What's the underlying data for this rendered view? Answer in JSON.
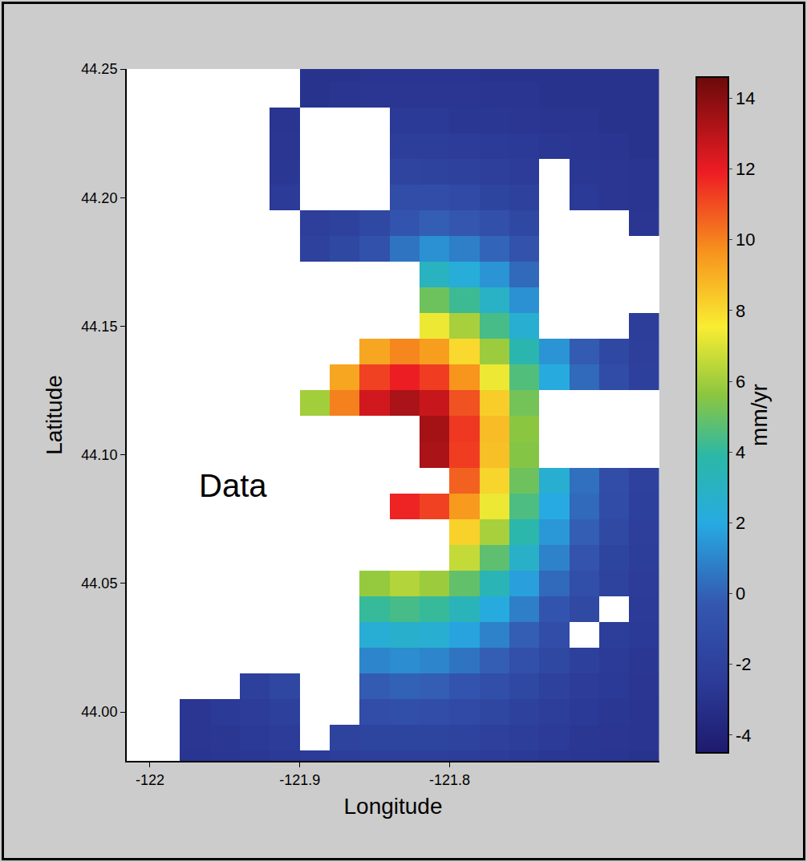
{
  "chart_data": {
    "type": "heatmap",
    "annotation": "Data",
    "x_label": "Longitude",
    "y_label": "Latitude",
    "colorbar_title": "mm/yr",
    "grid": false,
    "xlim": [
      -122.0155,
      -121.66
    ],
    "ylim": [
      43.981,
      44.25
    ],
    "xticks": [
      -122,
      -121.9,
      -121.8
    ],
    "yticks": [
      {
        "value": 44,
        "label": "44.00"
      },
      44.05,
      {
        "value": 44.1,
        "label": "44.10"
      },
      44.15,
      {
        "value": 44.2,
        "label": "44.20"
      },
      44.25
    ],
    "zlim": [
      -4.5,
      14.6
    ],
    "zticks": [
      -4,
      -2,
      0,
      2,
      4,
      6,
      8,
      10,
      12,
      14
    ],
    "x": [
      -122.01,
      -121.99,
      -121.97,
      -121.95,
      -121.93,
      -121.91,
      -121.89,
      -121.87,
      -121.85,
      -121.83,
      -121.81,
      -121.79,
      -121.77,
      -121.75,
      -121.73,
      -121.71,
      -121.69,
      -121.67
    ],
    "y": [
      43.98,
      43.99,
      44.0,
      44.01,
      44.02,
      44.03,
      44.04,
      44.05,
      44.06,
      44.07,
      44.08,
      44.09,
      44.1,
      44.11,
      44.12,
      44.13,
      44.14,
      44.15,
      44.16,
      44.17,
      44.18,
      44.19,
      44.2,
      44.21,
      44.22,
      44.23,
      44.24,
      44.25
    ],
    "z": [
      [
        null,
        null,
        -2.9,
        -2.8,
        -2.7,
        -2.6,
        -2.5,
        -2.3,
        -2.2,
        -2.2,
        -2.2,
        -2.3,
        -2.4,
        -2.6,
        -2.7,
        -2.8,
        -2.9,
        -3.0
      ],
      [
        null,
        null,
        -2.8,
        -2.7,
        -2.6,
        -2.4,
        null,
        -1.9,
        -1.7,
        -1.7,
        -1.7,
        -1.9,
        -2.1,
        -2.3,
        -2.5,
        -2.7,
        -2.8,
        -2.9
      ],
      [
        null,
        null,
        -2.8,
        -2.6,
        -2.4,
        -2.1,
        null,
        null,
        -1.1,
        -1.0,
        -1.1,
        -1.3,
        -1.6,
        -2.0,
        -2.3,
        -2.6,
        -2.7,
        -2.9
      ],
      [
        null,
        null,
        null,
        null,
        -2.1,
        -1.6,
        null,
        null,
        -0.2,
        0.0,
        -0.1,
        -0.5,
        -1.0,
        -1.5,
        -2.0,
        -2.4,
        -2.6,
        -2.8
      ],
      [
        null,
        null,
        null,
        null,
        null,
        null,
        null,
        null,
        1.0,
        1.2,
        1.0,
        0.5,
        -0.1,
        -0.9,
        -1.5,
        -2.1,
        -2.5,
        -2.7
      ],
      [
        null,
        null,
        null,
        null,
        null,
        null,
        null,
        null,
        2.4,
        2.7,
        2.5,
        1.8,
        0.9,
        -0.1,
        -1.1,
        null,
        -2.3,
        -2.6
      ],
      [
        null,
        null,
        null,
        null,
        null,
        null,
        null,
        null,
        4.1,
        4.4,
        4.1,
        3.3,
        2.1,
        0.8,
        -0.5,
        -1.4,
        null,
        -2.5
      ],
      [
        null,
        null,
        null,
        null,
        null,
        null,
        null,
        null,
        5.8,
        6.3,
        5.9,
        4.9,
        3.4,
        1.7,
        0.2,
        -1.0,
        -1.9,
        -2.4
      ],
      [
        null,
        null,
        null,
        null,
        null,
        null,
        null,
        null,
        null,
        null,
        null,
        6.6,
        4.8,
        2.8,
        0.9,
        -0.6,
        -1.7,
        -2.3
      ],
      [
        null,
        null,
        null,
        null,
        null,
        null,
        null,
        null,
        null,
        null,
        null,
        8.2,
        6.1,
        3.7,
        1.5,
        -0.1,
        -1.4,
        -2.2
      ],
      [
        null,
        null,
        null,
        null,
        null,
        null,
        null,
        null,
        null,
        11.8,
        11.2,
        9.5,
        7.3,
        4.5,
        2.0,
        0.2,
        -1.2,
        -2.1
      ],
      [
        null,
        null,
        null,
        null,
        null,
        null,
        null,
        null,
        null,
        null,
        null,
        10.6,
        8.1,
        5.1,
        2.5,
        0.4,
        -1.1,
        -2.0
      ],
      [
        null,
        null,
        null,
        null,
        null,
        null,
        null,
        null,
        null,
        null,
        13.3,
        11.3,
        8.6,
        5.5,
        null,
        null,
        null,
        null
      ],
      [
        null,
        null,
        null,
        null,
        null,
        null,
        null,
        null,
        null,
        null,
        13.4,
        11.4,
        8.7,
        5.6,
        null,
        null,
        null,
        null
      ],
      [
        null,
        null,
        null,
        null,
        null,
        null,
        6.0,
        10.0,
        12.5,
        13.3,
        12.7,
        10.9,
        8.3,
        5.2,
        null,
        null,
        null,
        null
      ],
      [
        null,
        null,
        null,
        null,
        null,
        null,
        null,
        9.2,
        11.2,
        11.9,
        11.3,
        9.6,
        7.3,
        4.6,
        2.1,
        0.2,
        -1.2,
        -2.1
      ],
      [
        null,
        null,
        null,
        null,
        null,
        null,
        null,
        null,
        9.2,
        9.9,
        9.4,
        8.0,
        5.9,
        3.6,
        1.4,
        -0.2,
        -1.5,
        -2.2
      ],
      [
        null,
        null,
        null,
        null,
        null,
        null,
        null,
        null,
        null,
        null,
        7.3,
        6.1,
        4.4,
        2.5,
        null,
        null,
        null,
        -2.3
      ],
      [
        null,
        null,
        null,
        null,
        null,
        null,
        null,
        null,
        null,
        null,
        5.1,
        4.2,
        2.9,
        1.3,
        null,
        null,
        null,
        null
      ],
      [
        null,
        null,
        null,
        null,
        null,
        null,
        null,
        null,
        null,
        null,
        3.1,
        2.3,
        1.4,
        0.2,
        null,
        null,
        null,
        null
      ],
      [
        null,
        null,
        null,
        null,
        null,
        null,
        -2.0,
        -1.5,
        -0.8,
        0.5,
        1.3,
        0.8,
        0.1,
        -0.7,
        null,
        null,
        null,
        null
      ],
      [
        null,
        null,
        null,
        null,
        null,
        null,
        -2.2,
        -2.0,
        -1.5,
        -0.5,
        -0.1,
        -0.4,
        -0.9,
        -1.5,
        null,
        null,
        null,
        -2.8
      ],
      [
        null,
        null,
        null,
        null,
        null,
        -2.5,
        null,
        null,
        null,
        -1.1,
        -1.1,
        -1.3,
        -1.7,
        -2.0,
        null,
        -2.6,
        -2.8,
        -2.9
      ],
      [
        null,
        null,
        null,
        null,
        null,
        -2.7,
        null,
        null,
        null,
        -1.8,
        -1.9,
        -2.0,
        -2.2,
        -2.4,
        null,
        -2.7,
        -2.8,
        -2.9
      ],
      [
        null,
        null,
        null,
        null,
        null,
        -2.8,
        null,
        null,
        null,
        -2.3,
        -2.3,
        -2.4,
        -2.5,
        -2.6,
        -2.7,
        -2.8,
        -2.9,
        -3.0
      ],
      [
        null,
        null,
        null,
        null,
        null,
        -2.9,
        null,
        null,
        null,
        -2.6,
        -2.6,
        -2.7,
        -2.7,
        -2.8,
        -2.9,
        -2.9,
        -3.0,
        -3.0
      ],
      [
        null,
        null,
        null,
        null,
        null,
        null,
        -3.0,
        -2.9,
        -2.8,
        -2.8,
        -2.8,
        -2.8,
        -2.9,
        -2.9,
        -3.0,
        -3.0,
        -3.0,
        -3.0
      ],
      [
        null,
        null,
        null,
        null,
        null,
        null,
        -3.0,
        -3.0,
        -2.9,
        -2.9,
        -2.9,
        -2.9,
        -3.0,
        -3.0,
        -3.0,
        -3.0,
        -3.0,
        -3.0
      ]
    ]
  }
}
